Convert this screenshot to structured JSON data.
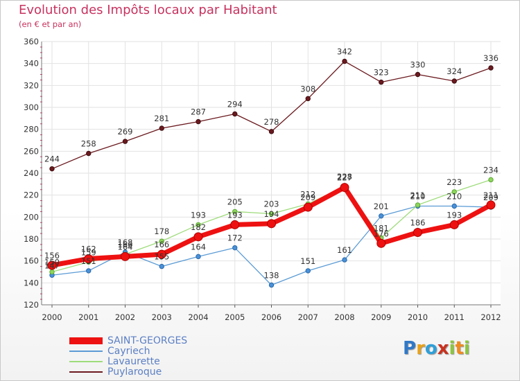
{
  "title": "Evolution des Impôts locaux par Habitant",
  "subtitle": "(en € et par an)",
  "brand": {
    "letters": [
      "P",
      "r",
      "o",
      "x",
      "i",
      "t",
      "i"
    ],
    "colors": [
      "#2f78c8",
      "#e8a21a",
      "#2f9fd8",
      "#c8321e",
      "#8cc63e",
      "#f08a1e",
      "#8cc63e"
    ]
  },
  "chart_data": {
    "type": "line",
    "title": "Evolution des Impôts locaux par Habitant",
    "subtitle": "(en € et par an)",
    "xlabel": "",
    "ylabel": "",
    "x": [
      "2000",
      "2001",
      "2002",
      "2003",
      "2004",
      "2005",
      "2006",
      "2007",
      "2008",
      "2009",
      "2010",
      "2011",
      "2012"
    ],
    "ylim": [
      120,
      360
    ],
    "yticks": [
      "120",
      "140",
      "160",
      "180",
      "200",
      "220",
      "240",
      "260",
      "280",
      "300",
      "320",
      "340",
      "360"
    ],
    "grid": true,
    "legend_position": "bottom-left",
    "series": [
      {
        "name": "Puylaroque",
        "color": "#6b1a1f",
        "values": [
          244,
          258,
          269,
          281,
          287,
          294,
          278,
          308,
          342,
          323,
          330,
          324,
          336
        ],
        "labels": [
          "244",
          "258",
          "269",
          "281",
          "287",
          "294",
          "278",
          "308",
          "342",
          "323",
          "330",
          "324",
          "336"
        ]
      },
      {
        "name": "Cayriech",
        "color": "#5b9bd5",
        "values": [
          147,
          151,
          168,
          155,
          164,
          172,
          138,
          151,
          161,
          201,
          210,
          210,
          209
        ],
        "labels": [
          "147",
          "151",
          "168",
          "155",
          "164",
          "172",
          "138",
          "151",
          "161",
          "201",
          "210",
          "210",
          "209"
        ]
      },
      {
        "name": "Lavaurette",
        "color": "#9fdc7c",
        "values": [
          150,
          159,
          166,
          178,
          193,
          205,
          203,
          212,
          228,
          181,
          211,
          223,
          234
        ],
        "labels": [
          "150",
          "159",
          "166",
          "178",
          "193",
          "205",
          "203",
          "212",
          "228",
          "181",
          "211",
          "223",
          "234"
        ]
      },
      {
        "name": "SAINT-GEORGES",
        "color": "#ee1111",
        "values": [
          156,
          162,
          164,
          166,
          182,
          193,
          194,
          209,
          227,
          176,
          186,
          193,
          211
        ],
        "labels": [
          "156",
          "162",
          "164",
          "166",
          "182",
          "193",
          "194",
          "209",
          "227",
          "176",
          "186",
          "193",
          "211"
        ]
      }
    ],
    "legend": [
      {
        "name": "SAINT-GEORGES",
        "color": "#ee1111"
      },
      {
        "name": "Cayriech",
        "color": "#5b9bd5"
      },
      {
        "name": "Lavaurette",
        "color": "#9fdc7c"
      },
      {
        "name": "Puylaroque",
        "color": "#6b1a1f"
      }
    ]
  }
}
